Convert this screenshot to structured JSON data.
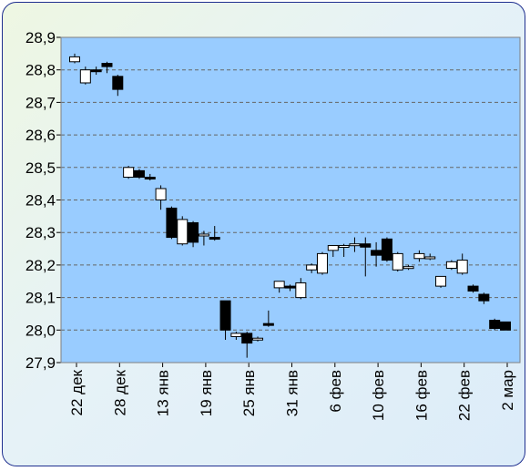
{
  "chart_data": {
    "type": "candlestick",
    "ylim": [
      27.9,
      28.9
    ],
    "yticks": [
      "27,9",
      "28,0",
      "28,1",
      "28,2",
      "28,3",
      "28,4",
      "28,5",
      "28,6",
      "28,7",
      "28,8",
      "28,9"
    ],
    "ytick_values": [
      27.9,
      28.0,
      28.1,
      28.2,
      28.3,
      28.4,
      28.5,
      28.6,
      28.7,
      28.8,
      28.9
    ],
    "xticks": [
      "22 дек",
      "28 дек",
      "13 янв",
      "19 янв",
      "25 янв",
      "31 янв",
      "6 фев",
      "10 фев",
      "16 фев",
      "22 фев",
      "2 мар"
    ],
    "grid": true,
    "colors": {
      "plot_bg": "#99ccff",
      "up": "#ffffff",
      "down": "#000000",
      "grid": "#666666"
    },
    "candles": [
      {
        "open": 28.825,
        "high": 28.85,
        "low": 28.82,
        "close": 28.84
      },
      {
        "open": 28.76,
        "high": 28.81,
        "low": 28.755,
        "close": 28.8
      },
      {
        "open": 28.8,
        "high": 28.81,
        "low": 28.785,
        "close": 28.795
      },
      {
        "open": 28.82,
        "high": 28.825,
        "low": 28.79,
        "close": 28.81
      },
      {
        "open": 28.78,
        "high": 28.785,
        "low": 28.72,
        "close": 28.74
      },
      {
        "open": 28.47,
        "high": 28.505,
        "low": 28.465,
        "close": 28.5
      },
      {
        "open": 28.49,
        "high": 28.495,
        "low": 28.465,
        "close": 28.47
      },
      {
        "open": 28.47,
        "high": 28.48,
        "low": 28.46,
        "close": 28.465
      },
      {
        "open": 28.4,
        "high": 28.445,
        "low": 28.37,
        "close": 28.435
      },
      {
        "open": 28.375,
        "high": 28.38,
        "low": 28.28,
        "close": 28.285
      },
      {
        "open": 28.265,
        "high": 28.35,
        "low": 28.26,
        "close": 28.34
      },
      {
        "open": 28.33,
        "high": 28.335,
        "low": 28.255,
        "close": 28.27
      },
      {
        "open": 28.29,
        "high": 28.305,
        "low": 28.26,
        "close": 28.295
      },
      {
        "open": 28.285,
        "high": 28.32,
        "low": 28.275,
        "close": 28.28
      },
      {
        "open": 28.09,
        "high": 28.09,
        "low": 27.97,
        "close": 28.0
      },
      {
        "open": 27.98,
        "high": 27.995,
        "low": 27.97,
        "close": 27.99
      },
      {
        "open": 27.99,
        "high": 27.995,
        "low": 27.915,
        "close": 27.96
      },
      {
        "open": 27.97,
        "high": 27.98,
        "low": 27.965,
        "close": 27.975
      },
      {
        "open": 28.02,
        "high": 28.06,
        "low": 28.01,
        "close": 28.015
      },
      {
        "open": 28.13,
        "high": 28.15,
        "low": 28.115,
        "close": 28.15
      },
      {
        "open": 28.135,
        "high": 28.14,
        "low": 28.12,
        "close": 28.13
      },
      {
        "open": 28.1,
        "high": 28.16,
        "low": 28.095,
        "close": 28.145
      },
      {
        "open": 28.185,
        "high": 28.205,
        "low": 28.175,
        "close": 28.2
      },
      {
        "open": 28.175,
        "high": 28.24,
        "low": 28.17,
        "close": 28.235
      },
      {
        "open": 28.245,
        "high": 28.26,
        "low": 28.225,
        "close": 28.26
      },
      {
        "open": 28.26,
        "high": 28.265,
        "low": 28.225,
        "close": 28.26
      },
      {
        "open": 28.265,
        "high": 28.285,
        "low": 28.24,
        "close": 28.265
      },
      {
        "open": 28.265,
        "high": 28.285,
        "low": 28.165,
        "close": 28.255
      },
      {
        "open": 28.245,
        "high": 28.27,
        "low": 28.195,
        "close": 28.23
      },
      {
        "open": 28.28,
        "high": 28.285,
        "low": 28.21,
        "close": 28.215
      },
      {
        "open": 28.185,
        "high": 28.24,
        "low": 28.18,
        "close": 28.235
      },
      {
        "open": 28.19,
        "high": 28.2,
        "low": 28.185,
        "close": 28.195
      },
      {
        "open": 28.22,
        "high": 28.245,
        "low": 28.21,
        "close": 28.235
      },
      {
        "open": 28.225,
        "high": 28.235,
        "low": 28.215,
        "close": 28.225
      },
      {
        "open": 28.135,
        "high": 28.165,
        "low": 28.13,
        "close": 28.165
      },
      {
        "open": 28.19,
        "high": 28.215,
        "low": 28.185,
        "close": 28.21
      },
      {
        "open": 28.175,
        "high": 28.235,
        "low": 28.17,
        "close": 28.215
      },
      {
        "open": 28.135,
        "high": 28.14,
        "low": 28.115,
        "close": 28.12
      },
      {
        "open": 28.11,
        "high": 28.115,
        "low": 28.08,
        "close": 28.09
      },
      {
        "open": 28.03,
        "high": 28.035,
        "low": 28.0,
        "close": 28.005
      },
      {
        "open": 28.025,
        "high": 28.025,
        "low": 28.0,
        "close": 28.0
      }
    ]
  }
}
